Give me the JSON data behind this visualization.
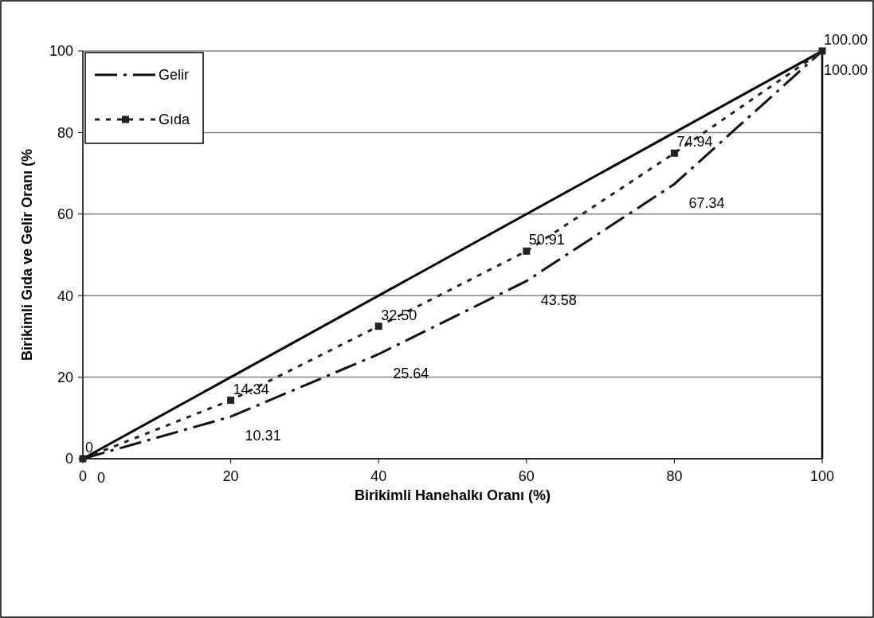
{
  "chart_data": {
    "type": "line",
    "xlabel": "Birikimli Hanehalkı Oranı (%)",
    "ylabel": "Birikimli Gıda ve Gelir Oranı (%",
    "xlim": [
      0,
      100
    ],
    "ylim": [
      0,
      100
    ],
    "xticks": [
      0,
      20,
      40,
      60,
      80,
      100
    ],
    "yticks": [
      0,
      20,
      40,
      60,
      80,
      100
    ],
    "grid": "y",
    "legend": "top left",
    "ref_lines": [
      {
        "axis": "x",
        "value": 100,
        "color": "#000000"
      }
    ],
    "series": [
      {
        "color": "#000000",
        "x": [
          0,
          100
        ],
        "values": [
          0,
          100
        ],
        "line_style": "solid"
      },
      {
        "name": "Gelir",
        "color": "#111111",
        "x": [
          0,
          20,
          40,
          60,
          80,
          100
        ],
        "values": [
          0,
          10.31,
          25.64,
          43.58,
          67.34,
          100
        ],
        "value_labels": [
          "0",
          "10.31",
          "25.64",
          "43.58",
          "67.34",
          "100.00"
        ],
        "line_style": "dashed"
      },
      {
        "name": "Gıda",
        "color": "#222222",
        "x": [
          0,
          20,
          40,
          60,
          80,
          100
        ],
        "values": [
          0,
          14.34,
          32.5,
          50.91,
          74.94,
          100
        ],
        "value_labels": [
          "0",
          "14.34",
          "32.50",
          "50.91",
          "74.94",
          "100.00"
        ],
        "line_style": "dotted",
        "marker": "square"
      }
    ]
  }
}
